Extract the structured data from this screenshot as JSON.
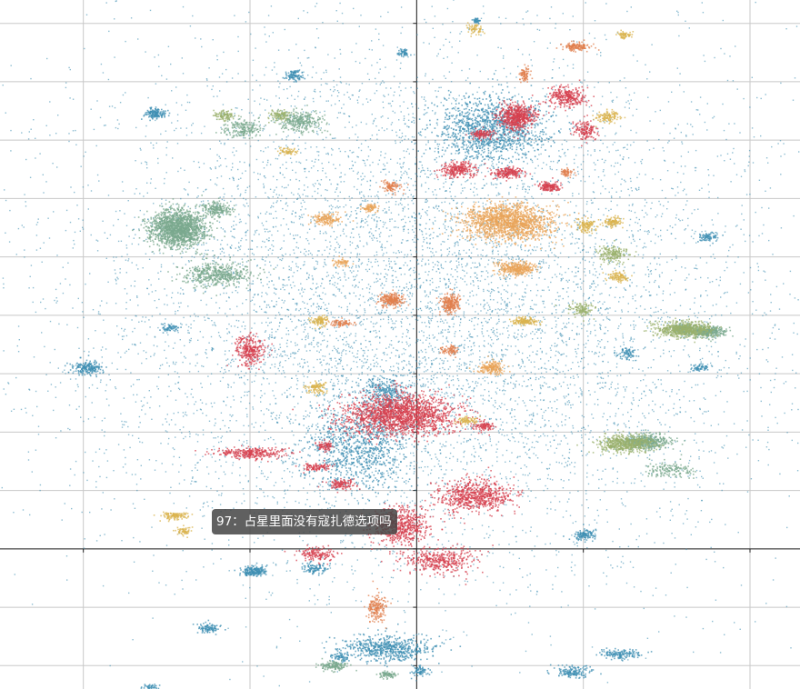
{
  "tooltip": {
    "text": "97：占星里面没有寇扎德选项吗"
  },
  "chart_data": {
    "type": "scatter",
    "title": "",
    "xlabel": "",
    "ylabel": "",
    "grid": true,
    "axes_visible": true,
    "tick_labels": false,
    "xlim": [
      -2.5,
      2.3
    ],
    "ylim": [
      -1.2,
      4.7
    ],
    "colors": {
      "base": "#3f8fb3",
      "sage": "#79a88d",
      "olive": "#9ab06c",
      "red": "#d5404f",
      "orange": "#e07f4e",
      "amber": "#e8a45a",
      "yellow": "#d9b34e"
    },
    "background_spread": {
      "cx": 0.0,
      "cy": 2.1,
      "rx": 1.9,
      "ry": 2.1,
      "count": 9000
    },
    "series": [
      {
        "color_key": "base",
        "clusters": [
          [
            -1.57,
            3.73,
            0.06,
            0.04,
            150
          ],
          [
            -0.74,
            4.05,
            0.05,
            0.04,
            100
          ],
          [
            -0.08,
            4.25,
            0.03,
            0.03,
            60
          ],
          [
            0.36,
            4.52,
            0.02,
            0.02,
            40
          ],
          [
            -1.97,
            1.55,
            0.08,
            0.05,
            200
          ],
          [
            -1.48,
            1.89,
            0.05,
            0.03,
            60
          ],
          [
            1.75,
            2.67,
            0.05,
            0.03,
            80
          ],
          [
            1.7,
            1.55,
            0.05,
            0.03,
            60
          ],
          [
            1.26,
            1.67,
            0.05,
            0.04,
            70
          ],
          [
            1.22,
            -0.9,
            0.12,
            0.04,
            150
          ],
          [
            0.94,
            -1.05,
            0.1,
            0.05,
            150
          ],
          [
            -1.25,
            -0.68,
            0.06,
            0.04,
            100
          ],
          [
            -0.97,
            -0.18,
            0.06,
            0.04,
            100
          ],
          [
            -0.98,
            -0.2,
            0.07,
            0.03,
            110
          ],
          [
            -0.61,
            -0.17,
            0.06,
            0.04,
            100
          ],
          [
            -0.17,
            -0.85,
            0.25,
            0.1,
            600
          ],
          [
            -0.45,
            -0.93,
            0.05,
            0.04,
            70
          ],
          [
            0.02,
            -1.05,
            0.05,
            0.04,
            70
          ],
          [
            -1.6,
            -1.18,
            0.04,
            0.02,
            40
          ],
          [
            1.01,
            0.12,
            0.06,
            0.04,
            120
          ],
          [
            -0.18,
            1.33,
            0.13,
            0.13,
            300
          ],
          [
            0.45,
            3.6,
            0.3,
            0.25,
            1200
          ],
          [
            -0.35,
            0.88,
            0.3,
            0.35,
            900
          ]
        ]
      },
      {
        "color_key": "sage",
        "clusters": [
          [
            -1.43,
            2.74,
            0.15,
            0.14,
            1600
          ],
          [
            -1.2,
            2.35,
            0.2,
            0.1,
            500
          ],
          [
            -1.2,
            2.91,
            0.08,
            0.06,
            200
          ],
          [
            1.37,
            0.92,
            0.13,
            0.06,
            500
          ],
          [
            1.52,
            0.68,
            0.13,
            0.06,
            150
          ],
          [
            -0.5,
            -1.0,
            0.08,
            0.04,
            150
          ],
          [
            -0.17,
            -1.08,
            0.05,
            0.03,
            80
          ],
          [
            1.74,
            1.86,
            0.1,
            0.04,
            400
          ],
          [
            1.6,
            1.88,
            0.06,
            0.04,
            150
          ],
          [
            -0.7,
            3.66,
            0.12,
            0.08,
            300
          ],
          [
            -1.05,
            3.6,
            0.1,
            0.07,
            200
          ]
        ]
      },
      {
        "color_key": "olive",
        "clusters": [
          [
            1.6,
            1.88,
            0.15,
            0.06,
            600
          ],
          [
            1.25,
            0.9,
            0.15,
            0.07,
            500
          ],
          [
            1.18,
            2.52,
            0.08,
            0.06,
            180
          ],
          [
            0.99,
            2.05,
            0.07,
            0.06,
            120
          ],
          [
            -1.15,
            3.71,
            0.05,
            0.04,
            100
          ],
          [
            -0.82,
            3.71,
            0.06,
            0.04,
            100
          ]
        ]
      },
      {
        "color_key": "red",
        "clusters": [
          [
            -0.1,
            1.15,
            0.3,
            0.16,
            1800
          ],
          [
            -1.0,
            1.7,
            0.07,
            0.12,
            300
          ],
          [
            -1.0,
            0.82,
            0.2,
            0.04,
            300
          ],
          [
            0.35,
            0.45,
            0.2,
            0.12,
            700
          ],
          [
            -0.1,
            0.2,
            0.15,
            0.15,
            600
          ],
          [
            0.15,
            -0.1,
            0.2,
            0.1,
            400
          ],
          [
            -0.6,
            -0.05,
            0.1,
            0.05,
            150
          ],
          [
            -0.55,
            0.88,
            0.04,
            0.04,
            80
          ],
          [
            -0.45,
            0.55,
            0.07,
            0.04,
            120
          ],
          [
            0.4,
            1.05,
            0.06,
            0.04,
            100
          ],
          [
            -0.6,
            0.7,
            0.08,
            0.03,
            100
          ],
          [
            0.6,
            3.7,
            0.1,
            0.1,
            600
          ],
          [
            0.9,
            3.87,
            0.1,
            0.08,
            300
          ],
          [
            0.25,
            3.25,
            0.1,
            0.06,
            250
          ],
          [
            0.55,
            3.22,
            0.08,
            0.04,
            200
          ],
          [
            0.8,
            3.1,
            0.06,
            0.04,
            150
          ],
          [
            1.01,
            3.58,
            0.06,
            0.08,
            150
          ],
          [
            0.4,
            3.55,
            0.06,
            0.04,
            120
          ]
        ]
      },
      {
        "color_key": "orange",
        "clusters": [
          [
            -0.15,
            2.13,
            0.06,
            0.05,
            250
          ],
          [
            0.2,
            2.1,
            0.05,
            0.08,
            250
          ],
          [
            -0.24,
            -0.5,
            0.05,
            0.1,
            180
          ],
          [
            0.65,
            4.06,
            0.03,
            0.05,
            80
          ],
          [
            0.96,
            4.3,
            0.07,
            0.03,
            150
          ],
          [
            -0.45,
            1.93,
            0.07,
            0.03,
            80
          ],
          [
            0.2,
            1.7,
            0.05,
            0.03,
            80
          ],
          [
            -0.15,
            3.1,
            0.05,
            0.05,
            100
          ],
          [
            0.9,
            3.22,
            0.04,
            0.03,
            60
          ]
        ]
      },
      {
        "color_key": "amber",
        "clusters": [
          [
            0.55,
            2.8,
            0.25,
            0.14,
            1500
          ],
          [
            0.6,
            2.4,
            0.1,
            0.05,
            350
          ],
          [
            0.45,
            1.55,
            0.07,
            0.05,
            200
          ],
          [
            -0.55,
            2.83,
            0.08,
            0.05,
            150
          ],
          [
            -0.28,
            2.92,
            0.05,
            0.03,
            80
          ],
          [
            -0.45,
            2.45,
            0.05,
            0.03,
            60
          ]
        ]
      },
      {
        "color_key": "yellow",
        "clusters": [
          [
            0.65,
            1.95,
            0.07,
            0.03,
            150
          ],
          [
            -0.58,
            1.95,
            0.04,
            0.04,
            100
          ],
          [
            -0.6,
            1.38,
            0.05,
            0.05,
            100
          ],
          [
            1.02,
            2.77,
            0.05,
            0.05,
            120
          ],
          [
            1.18,
            2.8,
            0.05,
            0.04,
            100
          ],
          [
            1.21,
            2.33,
            0.06,
            0.04,
            100
          ],
          [
            0.3,
            1.1,
            0.05,
            0.03,
            80
          ],
          [
            1.15,
            3.7,
            0.07,
            0.04,
            120
          ],
          [
            1.25,
            4.4,
            0.04,
            0.03,
            60
          ],
          [
            0.35,
            4.45,
            0.04,
            0.04,
            60
          ],
          [
            -1.45,
            0.28,
            0.07,
            0.03,
            120
          ],
          [
            -1.4,
            0.15,
            0.04,
            0.03,
            60
          ],
          [
            -0.77,
            3.4,
            0.05,
            0.03,
            60
          ]
        ]
      }
    ]
  }
}
